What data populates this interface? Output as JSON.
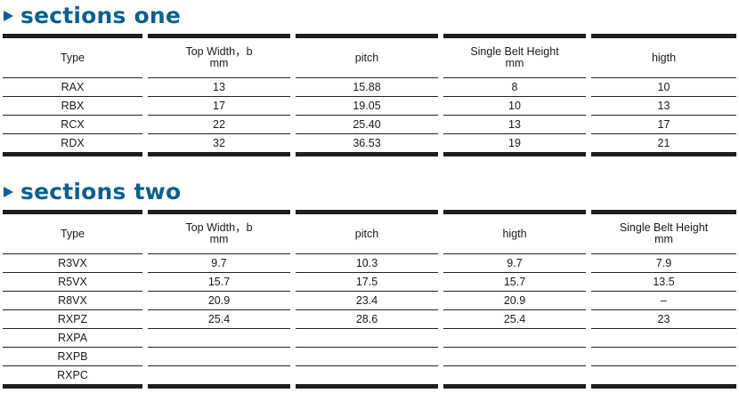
{
  "section_one": {
    "title": "sections one",
    "headers": [
      [
        "Type"
      ],
      [
        "Top Width，b",
        "mm"
      ],
      [
        "pitch"
      ],
      [
        "Single Belt Height",
        "mm"
      ],
      [
        "higth"
      ]
    ],
    "rows": [
      [
        "RAX",
        "13",
        "15.88",
        "8",
        "10"
      ],
      [
        "RBX",
        "17",
        "19.05",
        "10",
        "13"
      ],
      [
        "RCX",
        "22",
        "25.40",
        "13",
        "17"
      ],
      [
        "RDX",
        "32",
        "36.53",
        "19",
        "21"
      ]
    ]
  },
  "section_two": {
    "title": "sections two",
    "headers": [
      [
        "Type"
      ],
      [
        "Top Width，b",
        "mm"
      ],
      [
        "pitch"
      ],
      [
        "higth"
      ],
      [
        "Single Belt Height",
        "mm"
      ]
    ],
    "rows": [
      [
        "R3VX",
        "9.7",
        "10.3",
        "9.7",
        "7.9"
      ],
      [
        "R5VX",
        "15.7",
        "17.5",
        "15.7",
        "13.5"
      ],
      [
        "R8VX",
        "20.9",
        "23.4",
        "20.9",
        "–"
      ],
      [
        "RXPZ",
        "25.4",
        "28.6",
        "25.4",
        "23"
      ],
      [
        "RXPA",
        "",
        "",
        "",
        ""
      ],
      [
        "RXPB",
        "",
        "",
        "",
        ""
      ],
      [
        "RXPC",
        "",
        "",
        "",
        ""
      ]
    ]
  },
  "colors": {
    "heading": "#0b5f92",
    "rule": "#1e1e1e"
  }
}
